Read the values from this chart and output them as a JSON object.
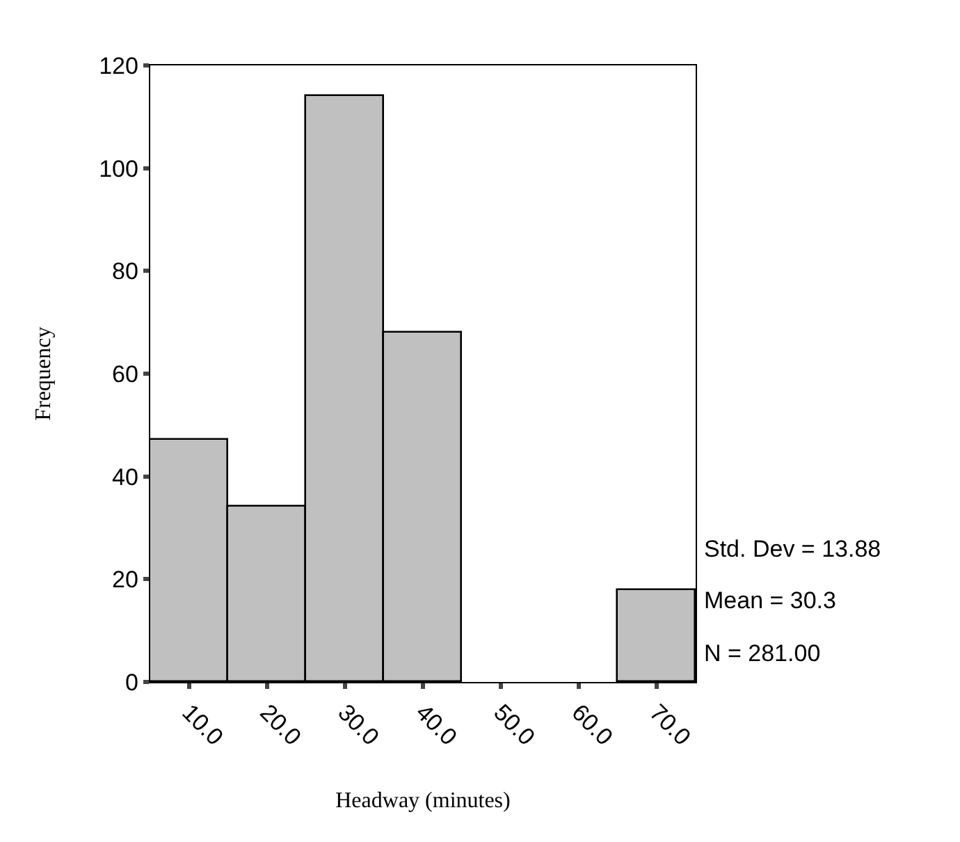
{
  "chart_data": {
    "type": "histogram",
    "xlabel": "Headway (minutes)",
    "ylabel": "Frequency",
    "bins": [
      5,
      15,
      25,
      35,
      45,
      55,
      65,
      75
    ],
    "values": [
      47,
      34,
      114,
      68,
      0,
      0,
      18
    ],
    "color": "#c0c0c0",
    "xlim": [
      5,
      75
    ],
    "xticks": [
      {
        "value": 10,
        "label": "10.0"
      },
      {
        "value": 20,
        "label": "20.0"
      },
      {
        "value": 30,
        "label": "30.0"
      },
      {
        "value": 40,
        "label": "40.0"
      },
      {
        "value": 50,
        "label": "50.0"
      },
      {
        "value": 60,
        "label": "60.0"
      },
      {
        "value": 70,
        "label": "70.0"
      }
    ],
    "ylim": [
      0,
      120
    ],
    "yticks": [
      0,
      20,
      40,
      60,
      80,
      100,
      120
    ],
    "annotations": [
      "Std. Dev = 13.88",
      "Mean = 30.3",
      "N = 281.00"
    ]
  }
}
